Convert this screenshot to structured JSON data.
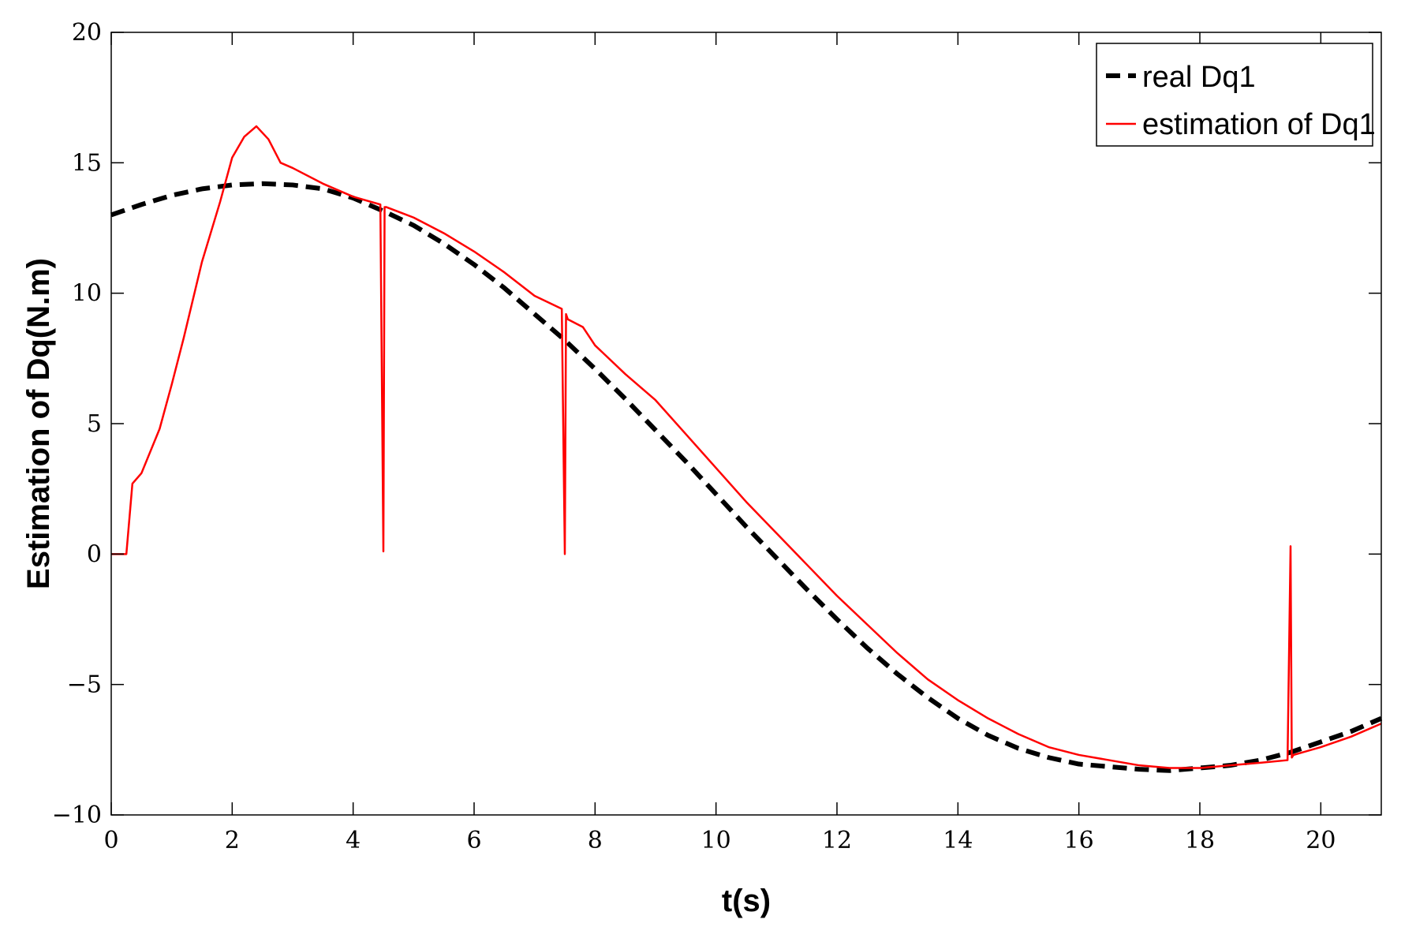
{
  "chart_data": {
    "type": "line",
    "title": "",
    "xlabel": "t(s)",
    "ylabel": "Estimation of Dq(N.m)",
    "xlim": [
      0,
      21
    ],
    "ylim": [
      -10,
      20
    ],
    "xticks": [
      0,
      2,
      4,
      6,
      8,
      10,
      12,
      14,
      16,
      18,
      20
    ],
    "yticks": [
      -10,
      -5,
      0,
      5,
      10,
      15,
      20
    ],
    "ytick_labels": [
      "−10",
      "−5",
      "0",
      "5",
      "10",
      "15",
      "20"
    ],
    "grid": false,
    "legend_position": "top-right",
    "series": [
      {
        "name": "real Dq1",
        "color": "#000000",
        "style": "dashed",
        "x": [
          0,
          0.5,
          1,
          1.5,
          2,
          2.5,
          3,
          3.5,
          4,
          4.5,
          5,
          5.5,
          6,
          6.5,
          7,
          7.5,
          8,
          8.5,
          9,
          9.5,
          10,
          10.5,
          11,
          11.5,
          12,
          12.5,
          13,
          13.5,
          14,
          14.5,
          15,
          15.5,
          16,
          16.5,
          17,
          17.5,
          18,
          18.5,
          19,
          19.5,
          20,
          20.5,
          21
        ],
        "y": [
          13.0,
          13.4,
          13.75,
          14.0,
          14.15,
          14.2,
          14.15,
          14.0,
          13.65,
          13.15,
          12.6,
          11.9,
          11.1,
          10.2,
          9.2,
          8.2,
          7.1,
          5.95,
          4.75,
          3.55,
          2.3,
          1.05,
          -0.15,
          -1.35,
          -2.5,
          -3.6,
          -4.6,
          -5.5,
          -6.3,
          -6.95,
          -7.45,
          -7.8,
          -8.05,
          -8.15,
          -8.25,
          -8.3,
          -8.2,
          -8.1,
          -7.9,
          -7.6,
          -7.2,
          -6.8,
          -6.3
        ]
      },
      {
        "name": "estimation of Dq1",
        "color": "#ff0000",
        "style": "solid",
        "x": [
          0,
          0.25,
          0.35,
          0.5,
          0.8,
          1.0,
          1.2,
          1.5,
          1.8,
          2.0,
          2.2,
          2.4,
          2.6,
          2.8,
          3.0,
          3.5,
          4.0,
          4.45,
          4.5,
          4.52,
          4.55,
          5.0,
          5.5,
          6.0,
          6.5,
          7.0,
          7.45,
          7.5,
          7.52,
          7.55,
          7.8,
          8.0,
          8.5,
          9.0,
          9.5,
          10.0,
          10.5,
          11.0,
          11.5,
          12.0,
          12.5,
          13.0,
          13.5,
          14.0,
          14.5,
          15.0,
          15.5,
          16.0,
          16.5,
          17.0,
          17.5,
          18.0,
          18.5,
          19.0,
          19.45,
          19.5,
          19.52,
          19.55,
          20.0,
          20.5,
          21.0
        ],
        "y": [
          0,
          0,
          2.7,
          3.1,
          4.8,
          6.5,
          8.3,
          11.2,
          13.5,
          15.2,
          16.0,
          16.4,
          15.9,
          15.0,
          14.8,
          14.2,
          13.7,
          13.4,
          0.1,
          13.3,
          13.3,
          12.9,
          12.3,
          11.6,
          10.8,
          9.9,
          9.4,
          0.0,
          9.2,
          9.0,
          8.7,
          8.0,
          6.9,
          5.9,
          4.6,
          3.3,
          2.0,
          0.8,
          -0.4,
          -1.6,
          -2.7,
          -3.8,
          -4.8,
          -5.6,
          -6.3,
          -6.9,
          -7.4,
          -7.7,
          -7.9,
          -8.1,
          -8.2,
          -8.2,
          -8.1,
          -8.0,
          -7.9,
          0.3,
          -7.8,
          -7.7,
          -7.4,
          -7.0,
          -6.5
        ]
      }
    ]
  }
}
